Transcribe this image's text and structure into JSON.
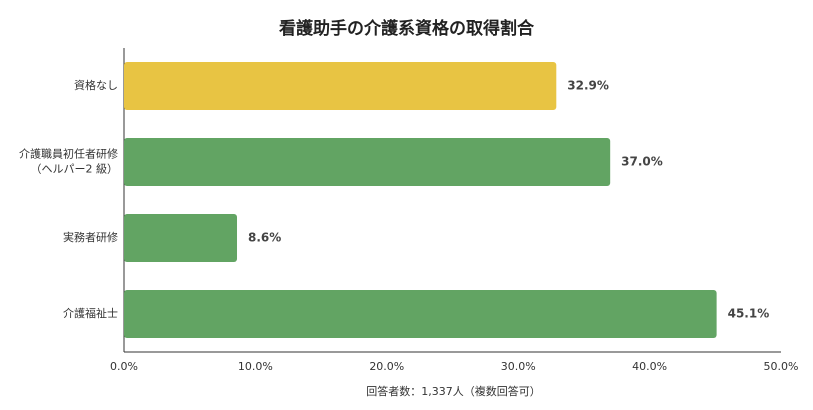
{
  "chart_data": {
    "type": "bar",
    "orientation": "horizontal",
    "title": "看護助手の介護系資格の取得割合",
    "xlabel": "回答者数：1,337人（複数回答可）",
    "categories": [
      [
        "資格なし"
      ],
      [
        "介護職員初任者研修",
        "（ヘルパー2 級）"
      ],
      [
        "実務者研修"
      ],
      [
        "介護福祉士"
      ]
    ],
    "values": [
      32.9,
      37.0,
      8.6,
      45.1
    ],
    "value_labels": [
      "32.9%",
      "37.0%",
      "8.6%",
      "45.1%"
    ],
    "xlim": [
      0,
      50
    ],
    "xticks": [
      "0.0%",
      "10.0%",
      "20.0%",
      "30.0%",
      "40.0%",
      "50.0%"
    ],
    "grid": false,
    "colors": [
      "#e8c443",
      "#62a463",
      "#62a463",
      "#62a463"
    ]
  }
}
